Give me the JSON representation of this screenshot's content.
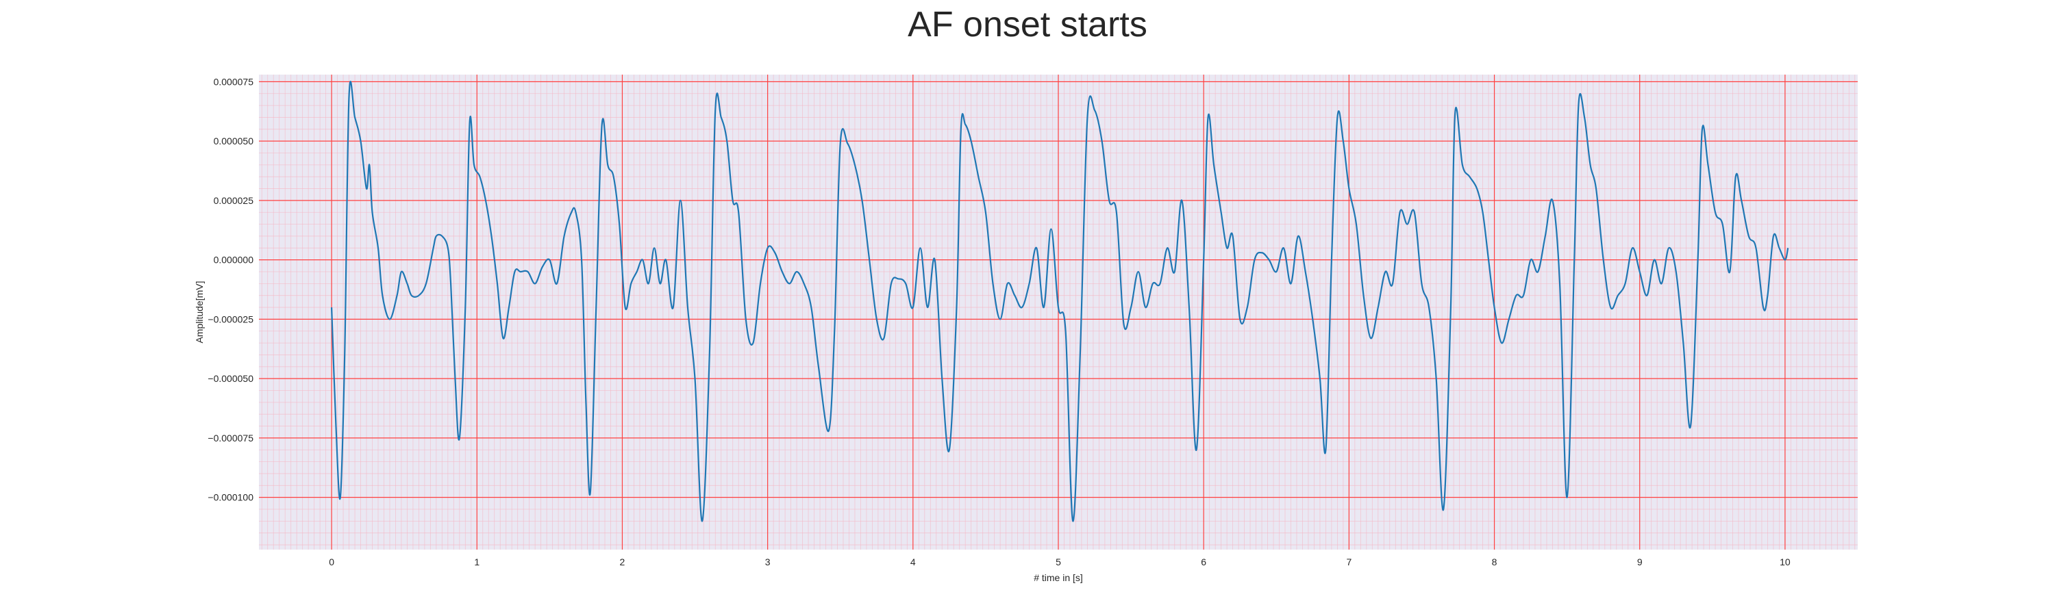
{
  "chart_data": {
    "type": "line",
    "title": "AF onset starts",
    "xlabel": "# time in [s]",
    "ylabel": "Amplitude[mV]",
    "xlim": [
      -0.5,
      10.5
    ],
    "ylim": [
      -0.000122,
      7.8e-05
    ],
    "x_ticks": [
      0,
      1,
      2,
      3,
      4,
      5,
      6,
      7,
      8,
      9,
      10
    ],
    "x_tick_labels": [
      "0",
      "1",
      "2",
      "3",
      "4",
      "5",
      "6",
      "7",
      "8",
      "9",
      "10"
    ],
    "y_ticks": [
      7.5e-05,
      5e-05,
      2.5e-05,
      0.0,
      -2.5e-05,
      -5e-05,
      -7.5e-05,
      -0.0001
    ],
    "y_tick_labels": [
      "0.000075",
      "0.000050",
      "0.000025",
      "0.000000",
      "−0.000025",
      "−0.000050",
      "−0.000075",
      "−0.000100"
    ],
    "grid": true,
    "colors": {
      "line": "#1f77b4",
      "plot_background": "#eae8f3",
      "major_grid": "#ff4040",
      "minor_grid": "#f5b6c4",
      "text": "#262626"
    },
    "series": [
      {
        "points": [
          [
            0.0,
            -2e-05
          ],
          [
            0.03,
            -7e-05
          ],
          [
            0.06,
            -0.0001
          ],
          [
            0.09,
            -4e-05
          ],
          [
            0.12,
            6.9e-05
          ],
          [
            0.16,
            6e-05
          ],
          [
            0.2,
            5e-05
          ],
          [
            0.24,
            3e-05
          ],
          [
            0.26,
            4e-05
          ],
          [
            0.28,
            2e-05
          ],
          [
            0.32,
            5e-06
          ],
          [
            0.35,
            -1.5e-05
          ],
          [
            0.4,
            -2.5e-05
          ],
          [
            0.45,
            -1.5e-05
          ],
          [
            0.48,
            -5e-06
          ],
          [
            0.52,
            -1e-05
          ],
          [
            0.55,
            -1.5e-05
          ],
          [
            0.6,
            -1.5e-05
          ],
          [
            0.65,
            -1e-05
          ],
          [
            0.7,
            5e-06
          ],
          [
            0.72,
            1e-05
          ],
          [
            0.76,
            1e-05
          ],
          [
            0.8,
            5e-06
          ],
          [
            0.82,
            -1e-05
          ],
          [
            0.85,
            -5e-05
          ],
          [
            0.88,
            -7.5e-05
          ],
          [
            0.92,
            -2e-05
          ],
          [
            0.95,
            5.8e-05
          ],
          [
            0.98,
            4e-05
          ],
          [
            1.02,
            3.5e-05
          ],
          [
            1.06,
            2.5e-05
          ],
          [
            1.1,
            1e-05
          ],
          [
            1.14,
            -1e-05
          ],
          [
            1.18,
            -3.3e-05
          ],
          [
            1.22,
            -2e-05
          ],
          [
            1.26,
            -5e-06
          ],
          [
            1.3,
            -5e-06
          ],
          [
            1.35,
            -5e-06
          ],
          [
            1.4,
            -1e-05
          ],
          [
            1.45,
            -3e-06
          ],
          [
            1.5,
            0.0
          ],
          [
            1.55,
            -1e-05
          ],
          [
            1.6,
            1e-05
          ],
          [
            1.65,
            2e-05
          ],
          [
            1.68,
            2e-05
          ],
          [
            1.72,
            0.0
          ],
          [
            1.75,
            -6e-05
          ],
          [
            1.78,
            -9.8e-05
          ],
          [
            1.82,
            -2e-05
          ],
          [
            1.86,
            5.7e-05
          ],
          [
            1.9,
            4e-05
          ],
          [
            1.94,
            3.5e-05
          ],
          [
            1.98,
            1.5e-05
          ],
          [
            2.02,
            -2e-05
          ],
          [
            2.06,
            -1e-05
          ],
          [
            2.1,
            -5e-06
          ],
          [
            2.14,
            0.0
          ],
          [
            2.18,
            -1e-05
          ],
          [
            2.22,
            5e-06
          ],
          [
            2.26,
            -1e-05
          ],
          [
            2.3,
            0.0
          ],
          [
            2.35,
            -2e-05
          ],
          [
            2.4,
            2.5e-05
          ],
          [
            2.45,
            -2e-05
          ],
          [
            2.5,
            -5e-05
          ],
          [
            2.55,
            -0.00011
          ],
          [
            2.6,
            -4e-05
          ],
          [
            2.64,
            6.3e-05
          ],
          [
            2.68,
            6e-05
          ],
          [
            2.72,
            5e-05
          ],
          [
            2.76,
            2.5e-05
          ],
          [
            2.8,
            2e-05
          ],
          [
            2.85,
            -2.5e-05
          ],
          [
            2.9,
            -3.5e-05
          ],
          [
            2.95,
            -1e-05
          ],
          [
            3.0,
            5e-06
          ],
          [
            3.05,
            3e-06
          ],
          [
            3.1,
            -5e-06
          ],
          [
            3.15,
            -1e-05
          ],
          [
            3.2,
            -5e-06
          ],
          [
            3.25,
            -1e-05
          ],
          [
            3.3,
            -2e-05
          ],
          [
            3.35,
            -4.5e-05
          ],
          [
            3.42,
            -7.2e-05
          ],
          [
            3.46,
            -3e-05
          ],
          [
            3.5,
            4.9e-05
          ],
          [
            3.55,
            4.9e-05
          ],
          [
            3.6,
            4e-05
          ],
          [
            3.65,
            2.5e-05
          ],
          [
            3.7,
            0.0
          ],
          [
            3.75,
            -2.5e-05
          ],
          [
            3.8,
            -3.3e-05
          ],
          [
            3.85,
            -1e-05
          ],
          [
            3.9,
            -8e-06
          ],
          [
            3.95,
            -1e-05
          ],
          [
            4.0,
            -2e-05
          ],
          [
            4.05,
            5e-06
          ],
          [
            4.1,
            -2e-05
          ],
          [
            4.15,
            0.0
          ],
          [
            4.2,
            -5e-05
          ],
          [
            4.25,
            -8e-05
          ],
          [
            4.3,
            -2e-05
          ],
          [
            4.33,
            5.5e-05
          ],
          [
            4.36,
            5.7e-05
          ],
          [
            4.4,
            5e-05
          ],
          [
            4.45,
            3.5e-05
          ],
          [
            4.5,
            2e-05
          ],
          [
            4.55,
            -1e-05
          ],
          [
            4.6,
            -2.5e-05
          ],
          [
            4.65,
            -1e-05
          ],
          [
            4.7,
            -1.5e-05
          ],
          [
            4.75,
            -2e-05
          ],
          [
            4.8,
            -1e-05
          ],
          [
            4.85,
            5e-06
          ],
          [
            4.9,
            -2e-05
          ],
          [
            4.95,
            1.3e-05
          ],
          [
            5.0,
            -2e-05
          ],
          [
            5.05,
            -3e-05
          ],
          [
            5.1,
            -0.00011
          ],
          [
            5.15,
            -4e-05
          ],
          [
            5.2,
            6e-05
          ],
          [
            5.25,
            6.3e-05
          ],
          [
            5.3,
            5e-05
          ],
          [
            5.35,
            2.5e-05
          ],
          [
            5.4,
            2e-05
          ],
          [
            5.45,
            -2.7e-05
          ],
          [
            5.5,
            -2e-05
          ],
          [
            5.55,
            -5e-06
          ],
          [
            5.6,
            -2e-05
          ],
          [
            5.65,
            -1e-05
          ],
          [
            5.7,
            -1e-05
          ],
          [
            5.75,
            5e-06
          ],
          [
            5.8,
            -5e-06
          ],
          [
            5.85,
            2.5e-05
          ],
          [
            5.9,
            -2e-05
          ],
          [
            5.95,
            -8e-05
          ],
          [
            6.0,
            0.0
          ],
          [
            6.03,
            6e-05
          ],
          [
            6.07,
            4e-05
          ],
          [
            6.12,
            2e-05
          ],
          [
            6.16,
            5e-06
          ],
          [
            6.2,
            1e-05
          ],
          [
            6.25,
            -2.5e-05
          ],
          [
            6.3,
            -2e-05
          ],
          [
            6.35,
            0.0
          ],
          [
            6.4,
            3e-06
          ],
          [
            6.45,
            0.0
          ],
          [
            6.5,
            -5e-06
          ],
          [
            6.55,
            5e-06
          ],
          [
            6.6,
            -1e-05
          ],
          [
            6.65,
            1e-05
          ],
          [
            6.7,
            -5e-06
          ],
          [
            6.75,
            -2.5e-05
          ],
          [
            6.8,
            -5e-05
          ],
          [
            6.84,
            -8e-05
          ],
          [
            6.88,
            0.0
          ],
          [
            6.92,
            6e-05
          ],
          [
            6.96,
            5e-05
          ],
          [
            7.0,
            3e-05
          ],
          [
            7.05,
            1.5e-05
          ],
          [
            7.1,
            -1.5e-05
          ],
          [
            7.15,
            -3.3e-05
          ],
          [
            7.2,
            -2e-05
          ],
          [
            7.25,
            -5e-06
          ],
          [
            7.3,
            -1e-05
          ],
          [
            7.35,
            2e-05
          ],
          [
            7.4,
            1.5e-05
          ],
          [
            7.45,
            2e-05
          ],
          [
            7.5,
            -1e-05
          ],
          [
            7.55,
            -2e-05
          ],
          [
            7.6,
            -5e-05
          ],
          [
            7.65,
            -0.000105
          ],
          [
            7.7,
            -2e-05
          ],
          [
            7.73,
            6.2e-05
          ],
          [
            7.78,
            4e-05
          ],
          [
            7.83,
            3.5e-05
          ],
          [
            7.88,
            3e-05
          ],
          [
            7.92,
            2e-05
          ],
          [
            7.96,
            0.0
          ],
          [
            8.0,
            -2e-05
          ],
          [
            8.05,
            -3.5e-05
          ],
          [
            8.1,
            -2.5e-05
          ],
          [
            8.15,
            -1.5e-05
          ],
          [
            8.2,
            -1.5e-05
          ],
          [
            8.25,
            0.0
          ],
          [
            8.3,
            -5e-06
          ],
          [
            8.35,
            1e-05
          ],
          [
            8.4,
            2.5e-05
          ],
          [
            8.45,
            -1e-05
          ],
          [
            8.5,
            -0.0001
          ],
          [
            8.55,
            0.0
          ],
          [
            8.58,
            6.6e-05
          ],
          [
            8.62,
            6e-05
          ],
          [
            8.66,
            4e-05
          ],
          [
            8.7,
            3e-05
          ],
          [
            8.75,
            0.0
          ],
          [
            8.8,
            -2e-05
          ],
          [
            8.85,
            -1.5e-05
          ],
          [
            8.9,
            -1e-05
          ],
          [
            8.95,
            5e-06
          ],
          [
            9.0,
            -5e-06
          ],
          [
            9.05,
            -1.5e-05
          ],
          [
            9.1,
            0.0
          ],
          [
            9.15,
            -1e-05
          ],
          [
            9.2,
            5e-06
          ],
          [
            9.25,
            -5e-06
          ],
          [
            9.3,
            -3.5e-05
          ],
          [
            9.35,
            -7e-05
          ],
          [
            9.4,
            0.0
          ],
          [
            9.43,
            5.5e-05
          ],
          [
            9.47,
            4e-05
          ],
          [
            9.52,
            2e-05
          ],
          [
            9.57,
            1.5e-05
          ],
          [
            9.62,
            -5e-06
          ],
          [
            9.66,
            3.5e-05
          ],
          [
            9.7,
            2.5e-05
          ],
          [
            9.75,
            1e-05
          ],
          [
            9.8,
            5e-06
          ],
          [
            9.85,
            -2e-05
          ],
          [
            9.88,
            -1.5e-05
          ],
          [
            9.92,
            1e-05
          ],
          [
            9.96,
            5e-06
          ],
          [
            10.0,
            0.0
          ],
          [
            10.02,
            5e-06
          ]
        ]
      }
    ]
  }
}
